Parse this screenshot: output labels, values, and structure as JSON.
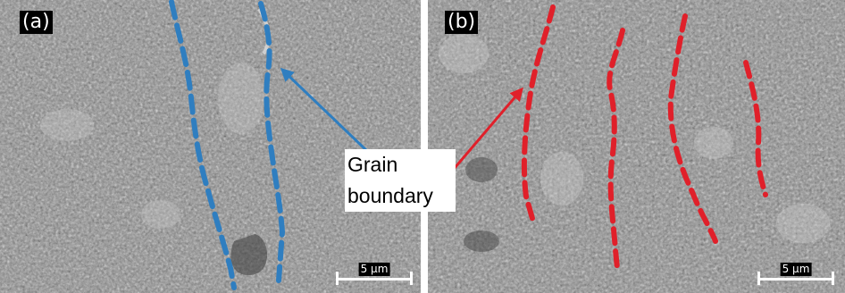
{
  "panels": [
    {
      "label": "(a)",
      "scale_bar": "5 µm",
      "boundary_color": "#2f7ec0"
    },
    {
      "label": "(b)",
      "scale_bar": "5 µm",
      "boundary_color": "#e0202a"
    }
  ],
  "annotation": {
    "line1": "Grain",
    "line2": "boundary"
  },
  "colors": {
    "blue_arrow": "#2f7ec0",
    "red_arrow": "#e0202a",
    "micrograph": "#8c8c8c"
  }
}
